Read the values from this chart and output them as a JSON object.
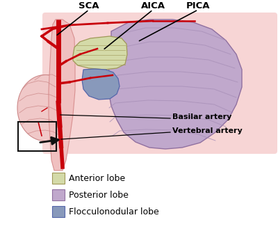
{
  "bg_color": "#ffffff",
  "fig_width": 4.0,
  "fig_height": 3.29,
  "dpi": 100,
  "colors": {
    "artery_red": "#c8000a",
    "bg_pink": "#f7d5d5",
    "brainstem_pink": "#f0c0c0",
    "brainstem_edge": "#d89090",
    "posterior_lobe": "#c0a8cc",
    "posterior_edge": "#9070a0",
    "anterior_lobe": "#d4daa8",
    "anterior_edge": "#a09858",
    "flocculo": "#8899bb",
    "flocculo_edge": "#5566aa",
    "fold_lines": "#a890b8",
    "brain_fill": "#f0c8c8",
    "brain_edge": "#cc8888",
    "black": "#000000"
  },
  "legend_items": [
    {
      "label": "Anterior lobe",
      "color": "#d4daa8",
      "edge": "#a09858"
    },
    {
      "label": "Posterior lobe",
      "color": "#c0a8cc",
      "edge": "#9070a0"
    },
    {
      "label": "Flocculonodular lobe",
      "color": "#8899bb",
      "edge": "#5566aa"
    }
  ]
}
